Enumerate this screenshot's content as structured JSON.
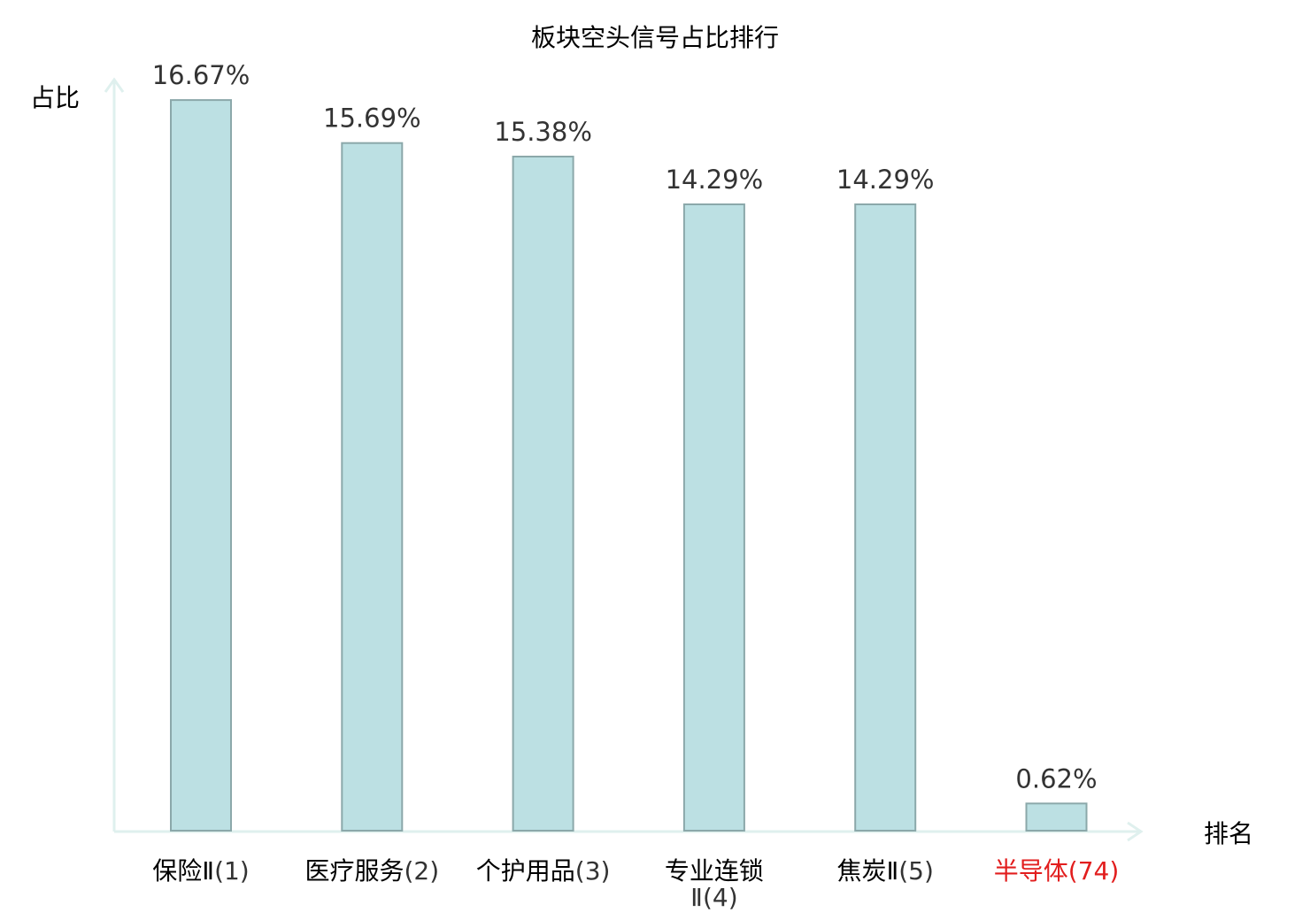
{
  "chart_data": {
    "type": "bar",
    "title": "板块空头信号占比排行",
    "ylabel": "占比",
    "xlabel": "排名",
    "ylim": [
      0,
      17.5
    ],
    "grid": false,
    "legend": "none",
    "categories": [
      {
        "name": "保险Ⅱ",
        "rank": "(1)",
        "line2": ""
      },
      {
        "name": "医疗服务",
        "rank": "(2)",
        "line2": ""
      },
      {
        "name": "个护用品",
        "rank": "(3)",
        "line2": ""
      },
      {
        "name": "专业连锁",
        "rank": "",
        "line2": "Ⅱ(4)"
      },
      {
        "name": "焦炭Ⅱ",
        "rank": "(5)",
        "line2": ""
      },
      {
        "name": "半导体",
        "rank": "(74)",
        "line2": ""
      }
    ],
    "values": [
      16.67,
      15.69,
      15.38,
      14.29,
      14.29,
      0.62
    ],
    "value_labels": [
      "16.67%",
      "15.69%",
      "15.38%",
      "14.29%",
      "14.29%",
      "0.62%"
    ],
    "highlight": [
      false,
      false,
      false,
      false,
      false,
      true
    ]
  },
  "colors": {
    "bar_fill": "#bce0e3",
    "bar_stroke": "#8ba8aa",
    "axis": "#dff0ee",
    "label_normal": "#000000",
    "label_rank": "#333333",
    "label_highlight": "#e21e1e"
  }
}
